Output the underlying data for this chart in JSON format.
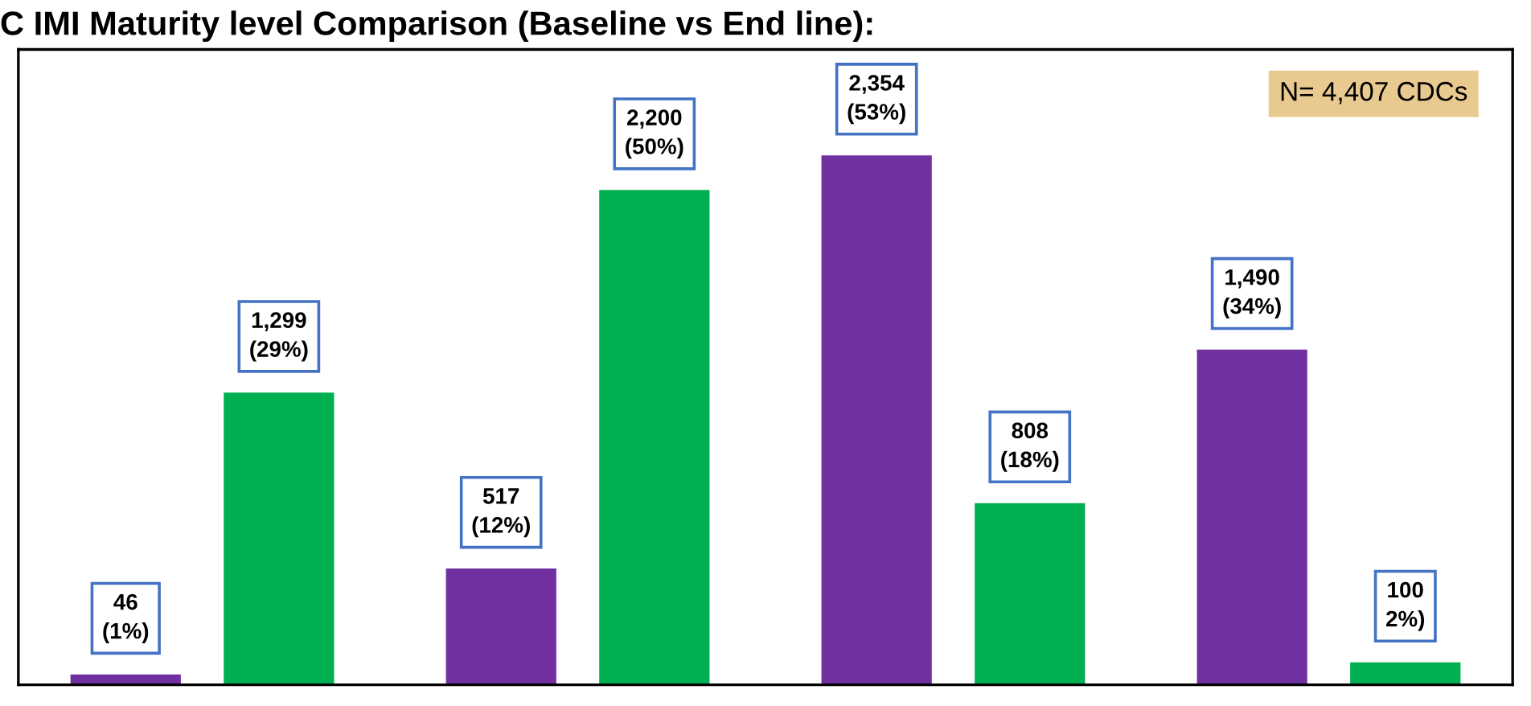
{
  "chart_data": {
    "type": "bar",
    "title": "C IMI Maturity level Comparison (Baseline vs End line):",
    "categories": [
      null,
      null,
      null,
      null,
      null,
      null,
      null,
      null
    ],
    "values": [
      46,
      1299,
      517,
      2200,
      2354,
      808,
      1490,
      100
    ],
    "colors": [
      "#7030a0",
      "#00b050",
      "#7030a0",
      "#00b050",
      "#7030a0",
      "#00b050",
      "#7030a0",
      "#00b050"
    ],
    "value_labels": [
      "46\n(1%)",
      "1,299\n(29%)",
      "517\n(12%)",
      "2,200\n(50%)",
      "2,354\n(53%)",
      "808\n(18%)",
      "1,490\n(34%)",
      "100\n2%)"
    ],
    "annotations": [
      "N= 4,407 CDCs"
    ]
  }
}
